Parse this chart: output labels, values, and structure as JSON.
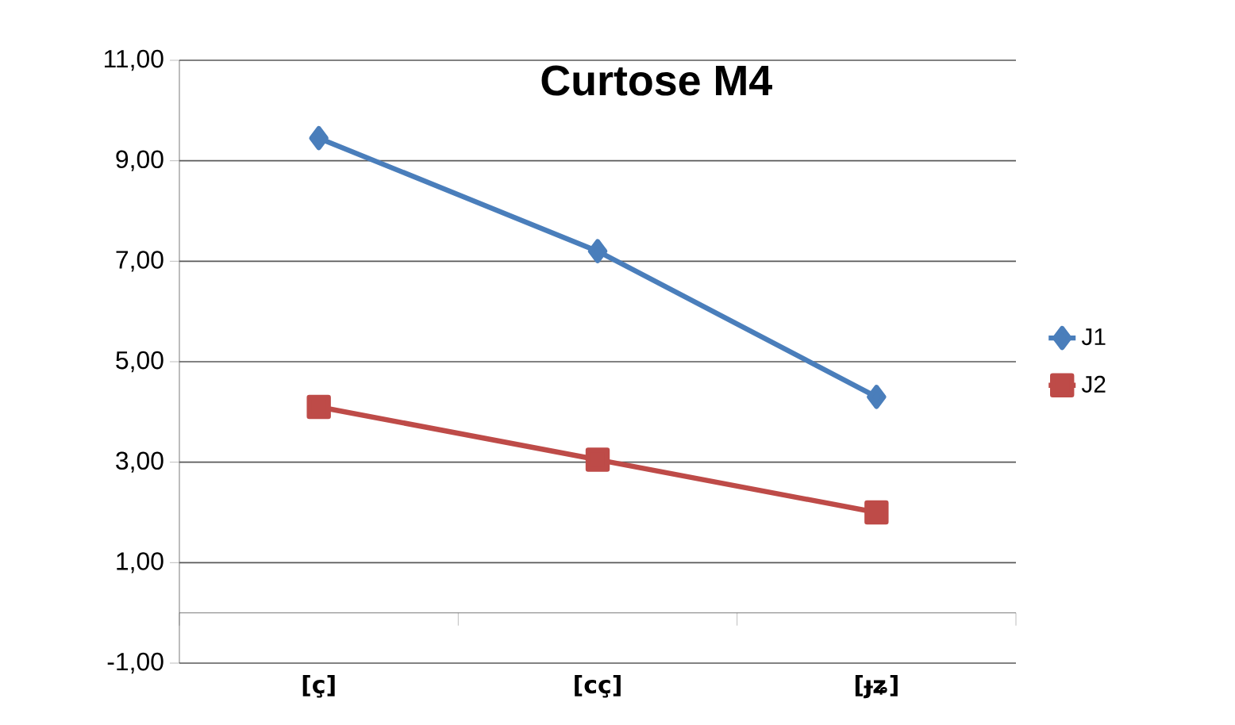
{
  "chart_data": {
    "type": "line",
    "title": "Curtose M4",
    "categories": [
      "[ç]",
      "[cç]",
      "[ɟʑ]"
    ],
    "series": [
      {
        "name": "J1",
        "color": "#4a7ebb",
        "marker": "diamond",
        "values": [
          9.45,
          7.2,
          4.3
        ]
      },
      {
        "name": "J2",
        "color": "#be4b48",
        "marker": "square",
        "values": [
          4.1,
          3.05,
          2.0
        ]
      }
    ],
    "ylim": [
      -1,
      11
    ],
    "yticks": [
      {
        "value": -1,
        "label": "-1,00"
      },
      {
        "value": 1,
        "label": "1,00"
      },
      {
        "value": 3,
        "label": "3,00"
      },
      {
        "value": 5,
        "label": "5,00"
      },
      {
        "value": 7,
        "label": "7,00"
      },
      {
        "value": 9,
        "label": "9,00"
      },
      {
        "value": 11,
        "label": "11,00"
      }
    ],
    "grid": "y",
    "legend": "right",
    "line_style": "solid"
  }
}
